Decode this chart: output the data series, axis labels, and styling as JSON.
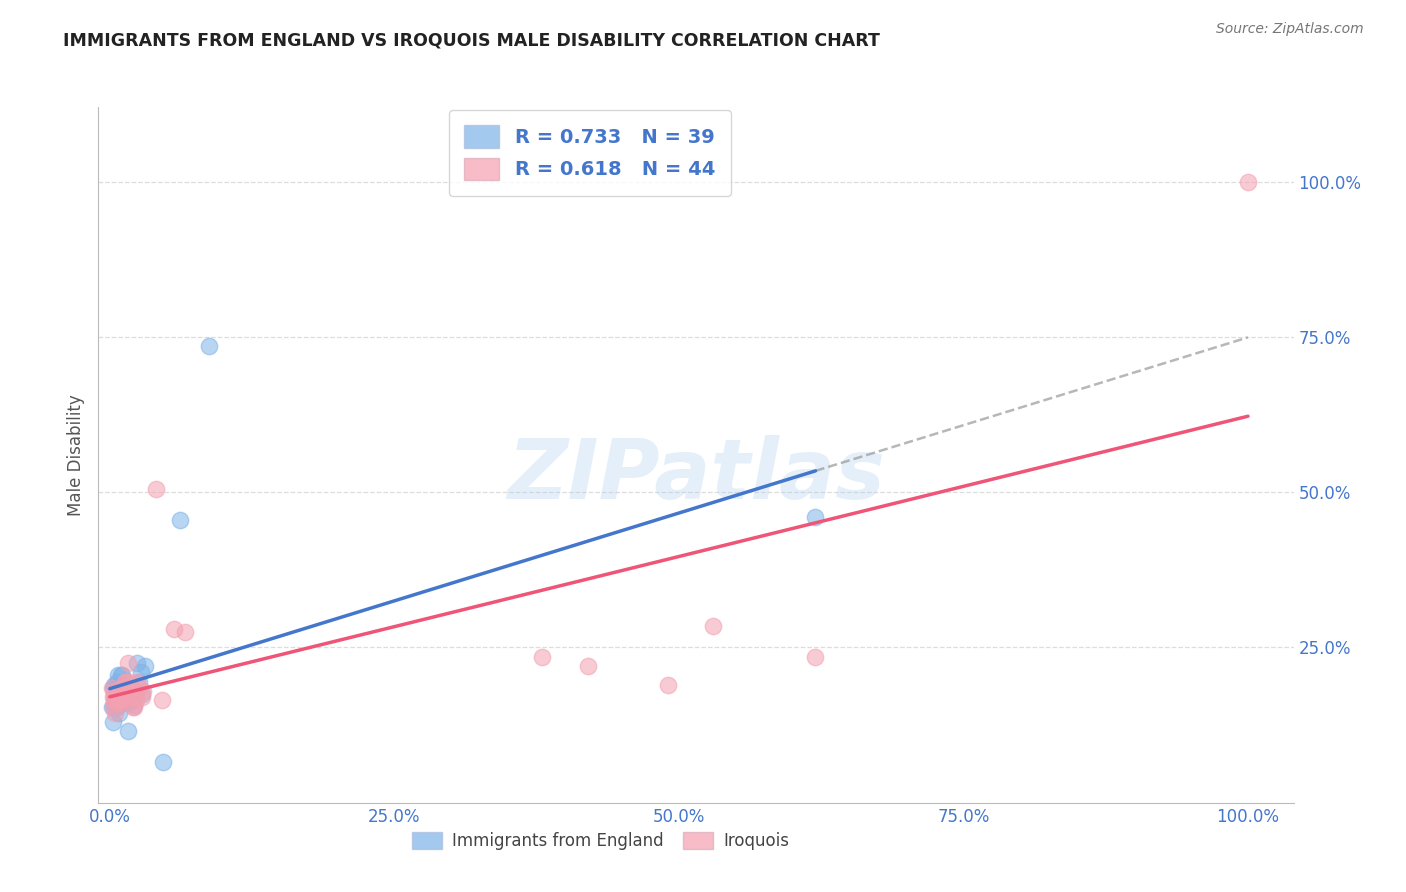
{
  "title": "IMMIGRANTS FROM ENGLAND VS IROQUOIS MALE DISABILITY CORRELATION CHART",
  "source": "Source: ZipAtlas.com",
  "ylabel": "Male Disability",
  "watermark": "ZIPatlas",
  "blue_R": 0.733,
  "blue_N": 39,
  "pink_R": 0.618,
  "pink_N": 44,
  "blue_color": "#7EB3E8",
  "pink_color": "#F4A0B0",
  "blue_line_color": "#4477CC",
  "pink_line_color": "#EE5577",
  "blue_scatter": [
    [
      0.002,
      0.155
    ],
    [
      0.003,
      0.185
    ],
    [
      0.003,
      0.13
    ],
    [
      0.004,
      0.19
    ],
    [
      0.004,
      0.155
    ],
    [
      0.005,
      0.165
    ],
    [
      0.005,
      0.17
    ],
    [
      0.006,
      0.195
    ],
    [
      0.006,
      0.185
    ],
    [
      0.006,
      0.155
    ],
    [
      0.007,
      0.165
    ],
    [
      0.007,
      0.205
    ],
    [
      0.008,
      0.19
    ],
    [
      0.008,
      0.145
    ],
    [
      0.009,
      0.17
    ],
    [
      0.009,
      0.16
    ],
    [
      0.01,
      0.165
    ],
    [
      0.01,
      0.205
    ],
    [
      0.011,
      0.205
    ],
    [
      0.011,
      0.18
    ],
    [
      0.012,
      0.175
    ],
    [
      0.013,
      0.18
    ],
    [
      0.014,
      0.165
    ],
    [
      0.015,
      0.185
    ],
    [
      0.016,
      0.115
    ],
    [
      0.017,
      0.16
    ],
    [
      0.018,
      0.165
    ],
    [
      0.019,
      0.175
    ],
    [
      0.021,
      0.158
    ],
    [
      0.023,
      0.18
    ],
    [
      0.024,
      0.225
    ],
    [
      0.026,
      0.195
    ],
    [
      0.027,
      0.21
    ],
    [
      0.028,
      0.175
    ],
    [
      0.031,
      0.22
    ],
    [
      0.047,
      0.065
    ],
    [
      0.062,
      0.455
    ],
    [
      0.087,
      0.735
    ],
    [
      0.62,
      0.46
    ]
  ],
  "pink_scatter": [
    [
      0.002,
      0.185
    ],
    [
      0.003,
      0.17
    ],
    [
      0.003,
      0.155
    ],
    [
      0.004,
      0.165
    ],
    [
      0.004,
      0.175
    ],
    [
      0.005,
      0.18
    ],
    [
      0.005,
      0.145
    ],
    [
      0.006,
      0.175
    ],
    [
      0.006,
      0.16
    ],
    [
      0.007,
      0.165
    ],
    [
      0.007,
      0.17
    ],
    [
      0.008,
      0.175
    ],
    [
      0.008,
      0.165
    ],
    [
      0.009,
      0.175
    ],
    [
      0.01,
      0.165
    ],
    [
      0.01,
      0.16
    ],
    [
      0.011,
      0.185
    ],
    [
      0.012,
      0.185
    ],
    [
      0.012,
      0.178
    ],
    [
      0.013,
      0.195
    ],
    [
      0.014,
      0.195
    ],
    [
      0.015,
      0.18
    ],
    [
      0.016,
      0.225
    ],
    [
      0.017,
      0.195
    ],
    [
      0.018,
      0.18
    ],
    [
      0.019,
      0.185
    ],
    [
      0.02,
      0.155
    ],
    [
      0.021,
      0.155
    ],
    [
      0.022,
      0.17
    ],
    [
      0.023,
      0.165
    ],
    [
      0.024,
      0.195
    ],
    [
      0.026,
      0.185
    ],
    [
      0.028,
      0.17
    ],
    [
      0.029,
      0.18
    ],
    [
      0.041,
      0.505
    ],
    [
      0.046,
      0.165
    ],
    [
      0.056,
      0.28
    ],
    [
      0.066,
      0.275
    ],
    [
      0.38,
      0.235
    ],
    [
      0.42,
      0.22
    ],
    [
      0.49,
      0.19
    ],
    [
      0.53,
      0.285
    ],
    [
      0.62,
      0.235
    ],
    [
      1.0,
      1.0
    ]
  ],
  "xlim": [
    -0.01,
    1.04
  ],
  "ylim": [
    0.0,
    1.12
  ],
  "xticks": [
    0.0,
    0.25,
    0.5,
    0.75,
    1.0
  ],
  "xtick_labels": [
    "0.0%",
    "25.0%",
    "50.0%",
    "75.0%",
    "100.0%"
  ],
  "yticks_right": [
    0.25,
    0.5,
    0.75,
    1.0
  ],
  "ytick_labels_right": [
    "25.0%",
    "50.0%",
    "75.0%",
    "100.0%"
  ],
  "grid_color": "#dddddd",
  "tick_color": "#4477CC",
  "background": "#ffffff",
  "legend_text_color": "#4477CC",
  "legend_label_color": "#333333"
}
